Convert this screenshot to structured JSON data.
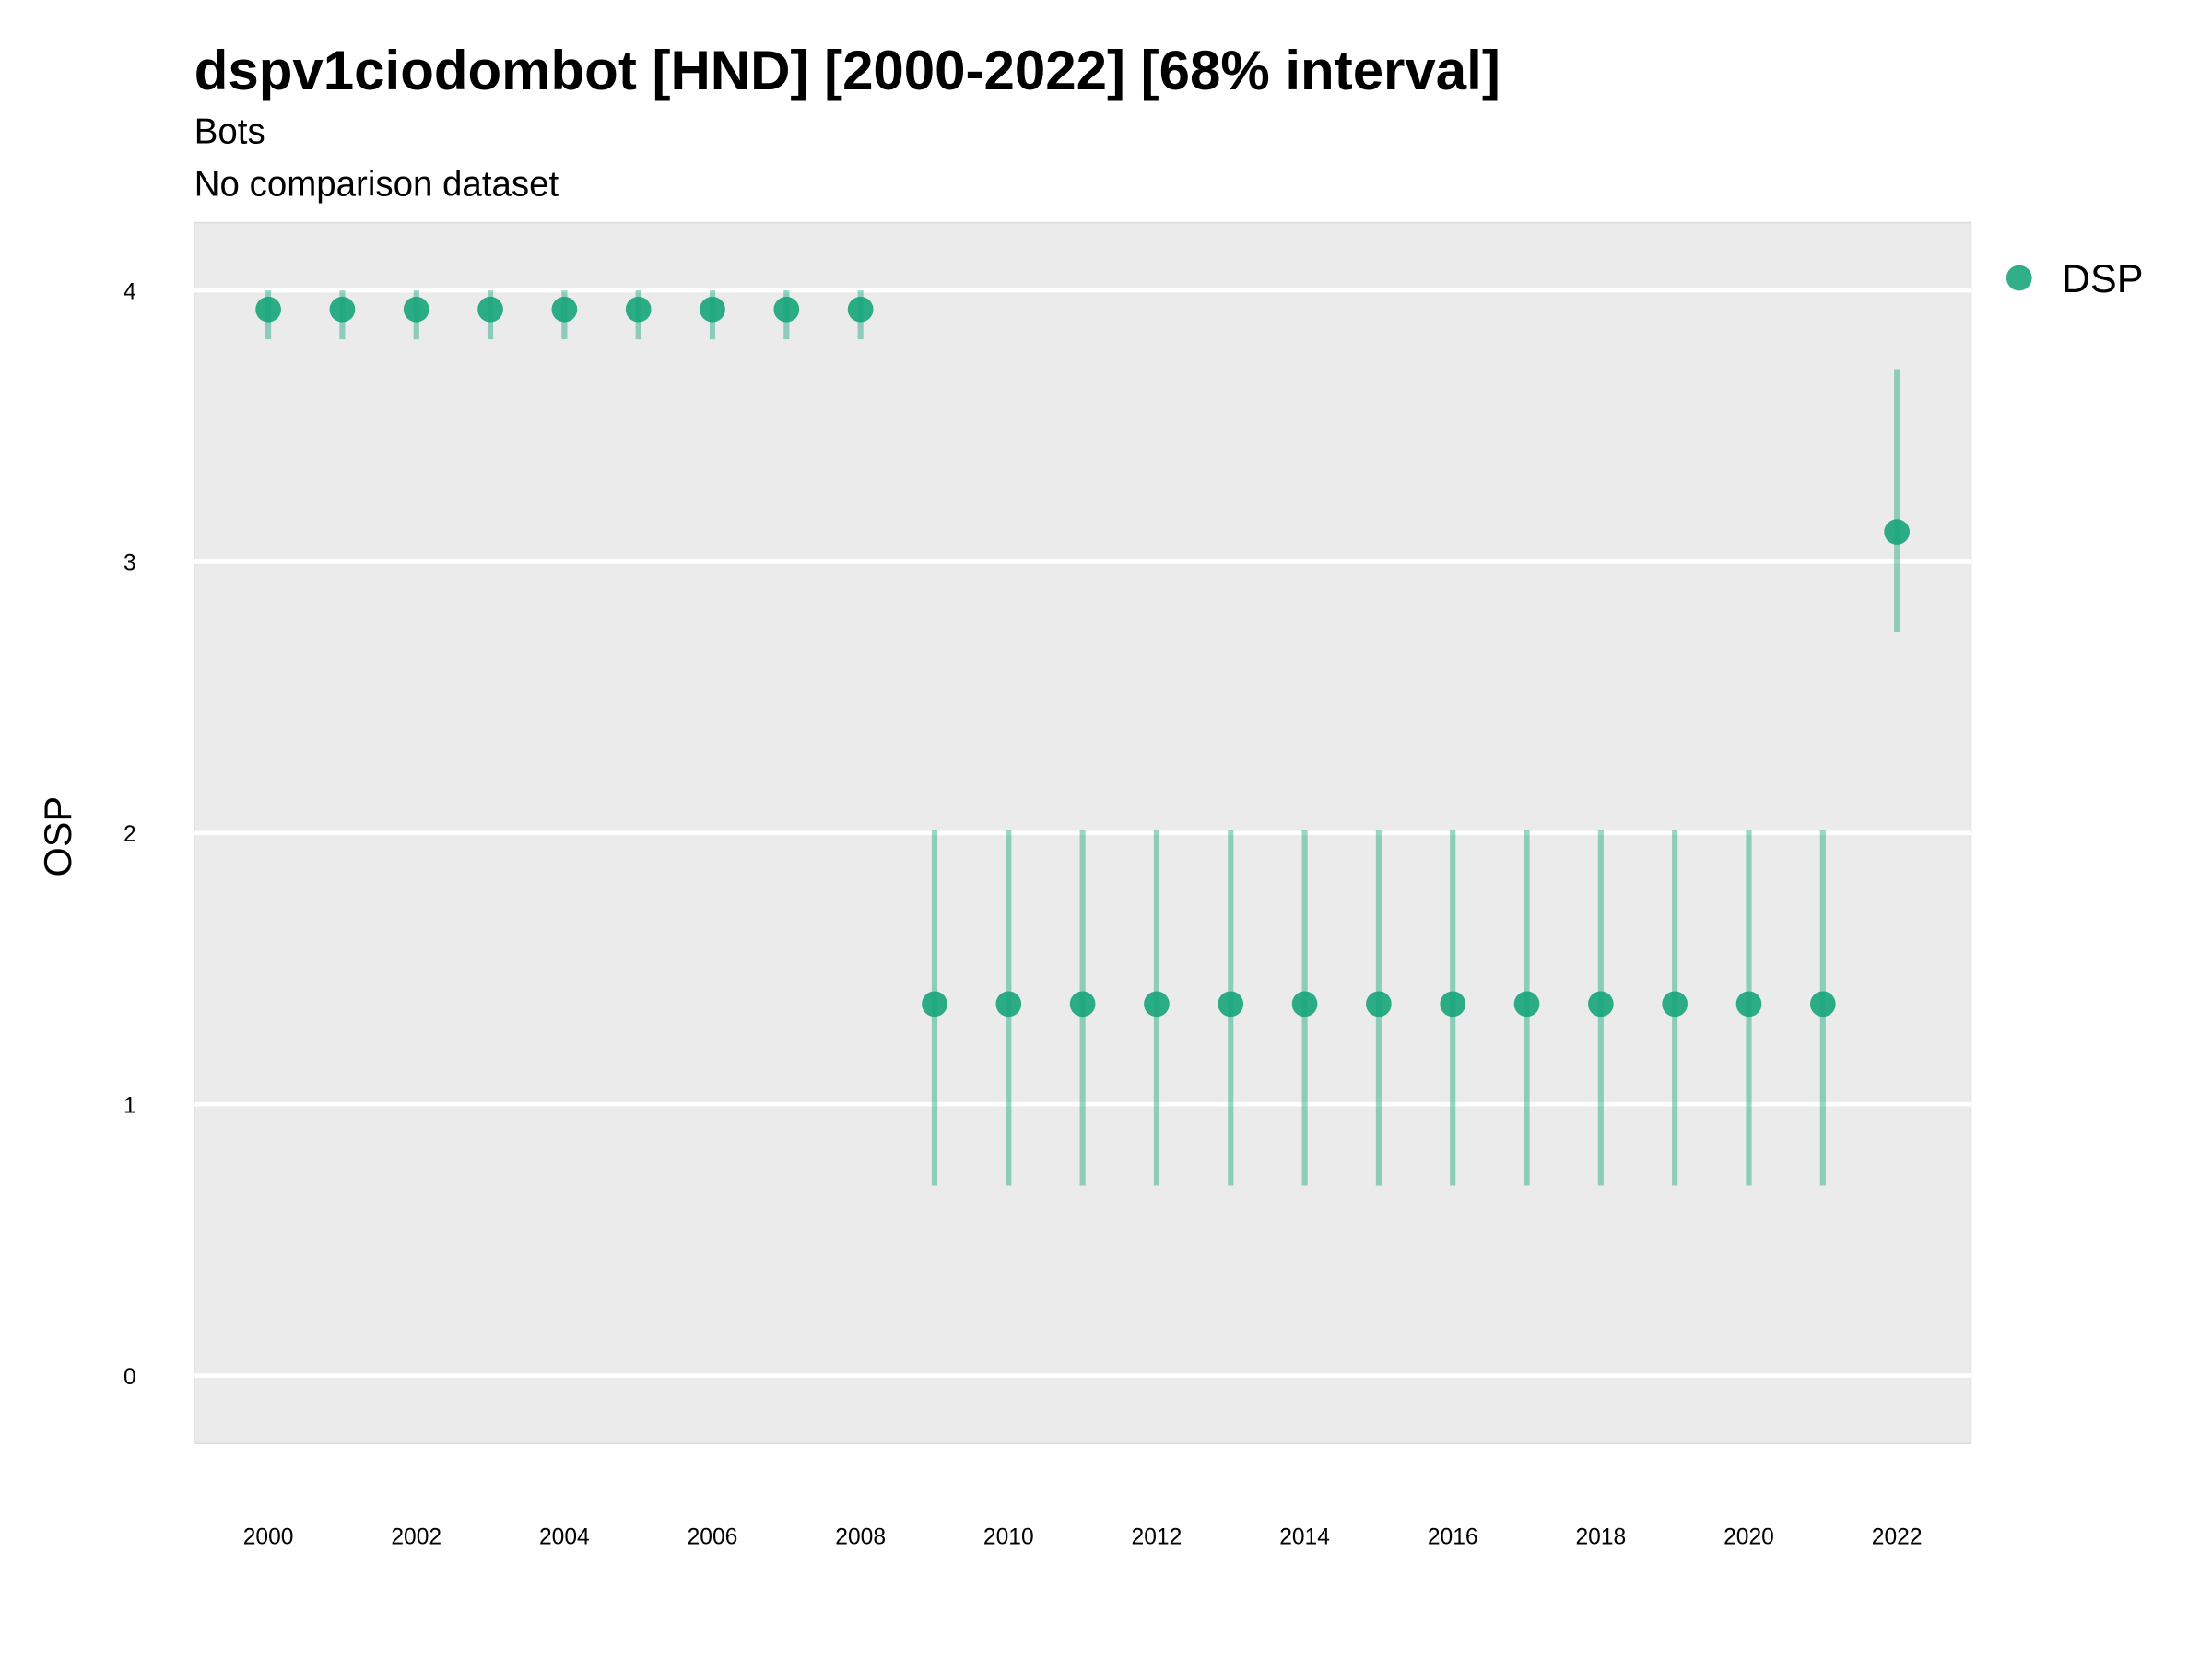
{
  "chart_data": {
    "type": "scatter",
    "title": "dspv1ciodombot [HND] [2000-2022] [68% interval]",
    "subtitle": "Bots",
    "caption_line": "No comparison dataset",
    "xlabel": "",
    "ylabel": "OSP",
    "xlim": [
      1999,
      2023
    ],
    "ylim": [
      -0.25,
      4.25
    ],
    "x_ticks": [
      2000,
      2002,
      2004,
      2006,
      2008,
      2010,
      2012,
      2014,
      2016,
      2018,
      2020,
      2022
    ],
    "y_ticks": [
      0,
      1,
      2,
      3,
      4
    ],
    "grid": true,
    "legend_position": "right",
    "series": [
      {
        "name": "DSP",
        "color": "#1aa67c",
        "x": [
          2000,
          2001,
          2002,
          2003,
          2004,
          2005,
          2006,
          2007,
          2008,
          2009,
          2010,
          2011,
          2012,
          2013,
          2014,
          2015,
          2016,
          2017,
          2018,
          2019,
          2020,
          2021,
          2022
        ],
        "y": [
          3.93,
          3.93,
          3.93,
          3.93,
          3.93,
          3.93,
          3.93,
          3.93,
          3.93,
          1.37,
          1.37,
          1.37,
          1.37,
          1.37,
          1.37,
          1.37,
          1.37,
          1.37,
          1.37,
          1.37,
          1.37,
          1.37,
          3.11
        ],
        "lower": [
          3.82,
          3.82,
          3.82,
          3.82,
          3.82,
          3.82,
          3.82,
          3.82,
          3.82,
          0.7,
          0.7,
          0.7,
          0.7,
          0.7,
          0.7,
          0.7,
          0.7,
          0.7,
          0.7,
          0.7,
          0.7,
          0.7,
          2.74
        ],
        "upper": [
          4.0,
          4.0,
          4.0,
          4.0,
          4.0,
          4.0,
          4.0,
          4.0,
          4.0,
          2.01,
          2.01,
          2.01,
          2.01,
          2.01,
          2.01,
          2.01,
          2.01,
          2.01,
          2.01,
          2.01,
          2.01,
          2.01,
          3.71
        ]
      }
    ]
  }
}
